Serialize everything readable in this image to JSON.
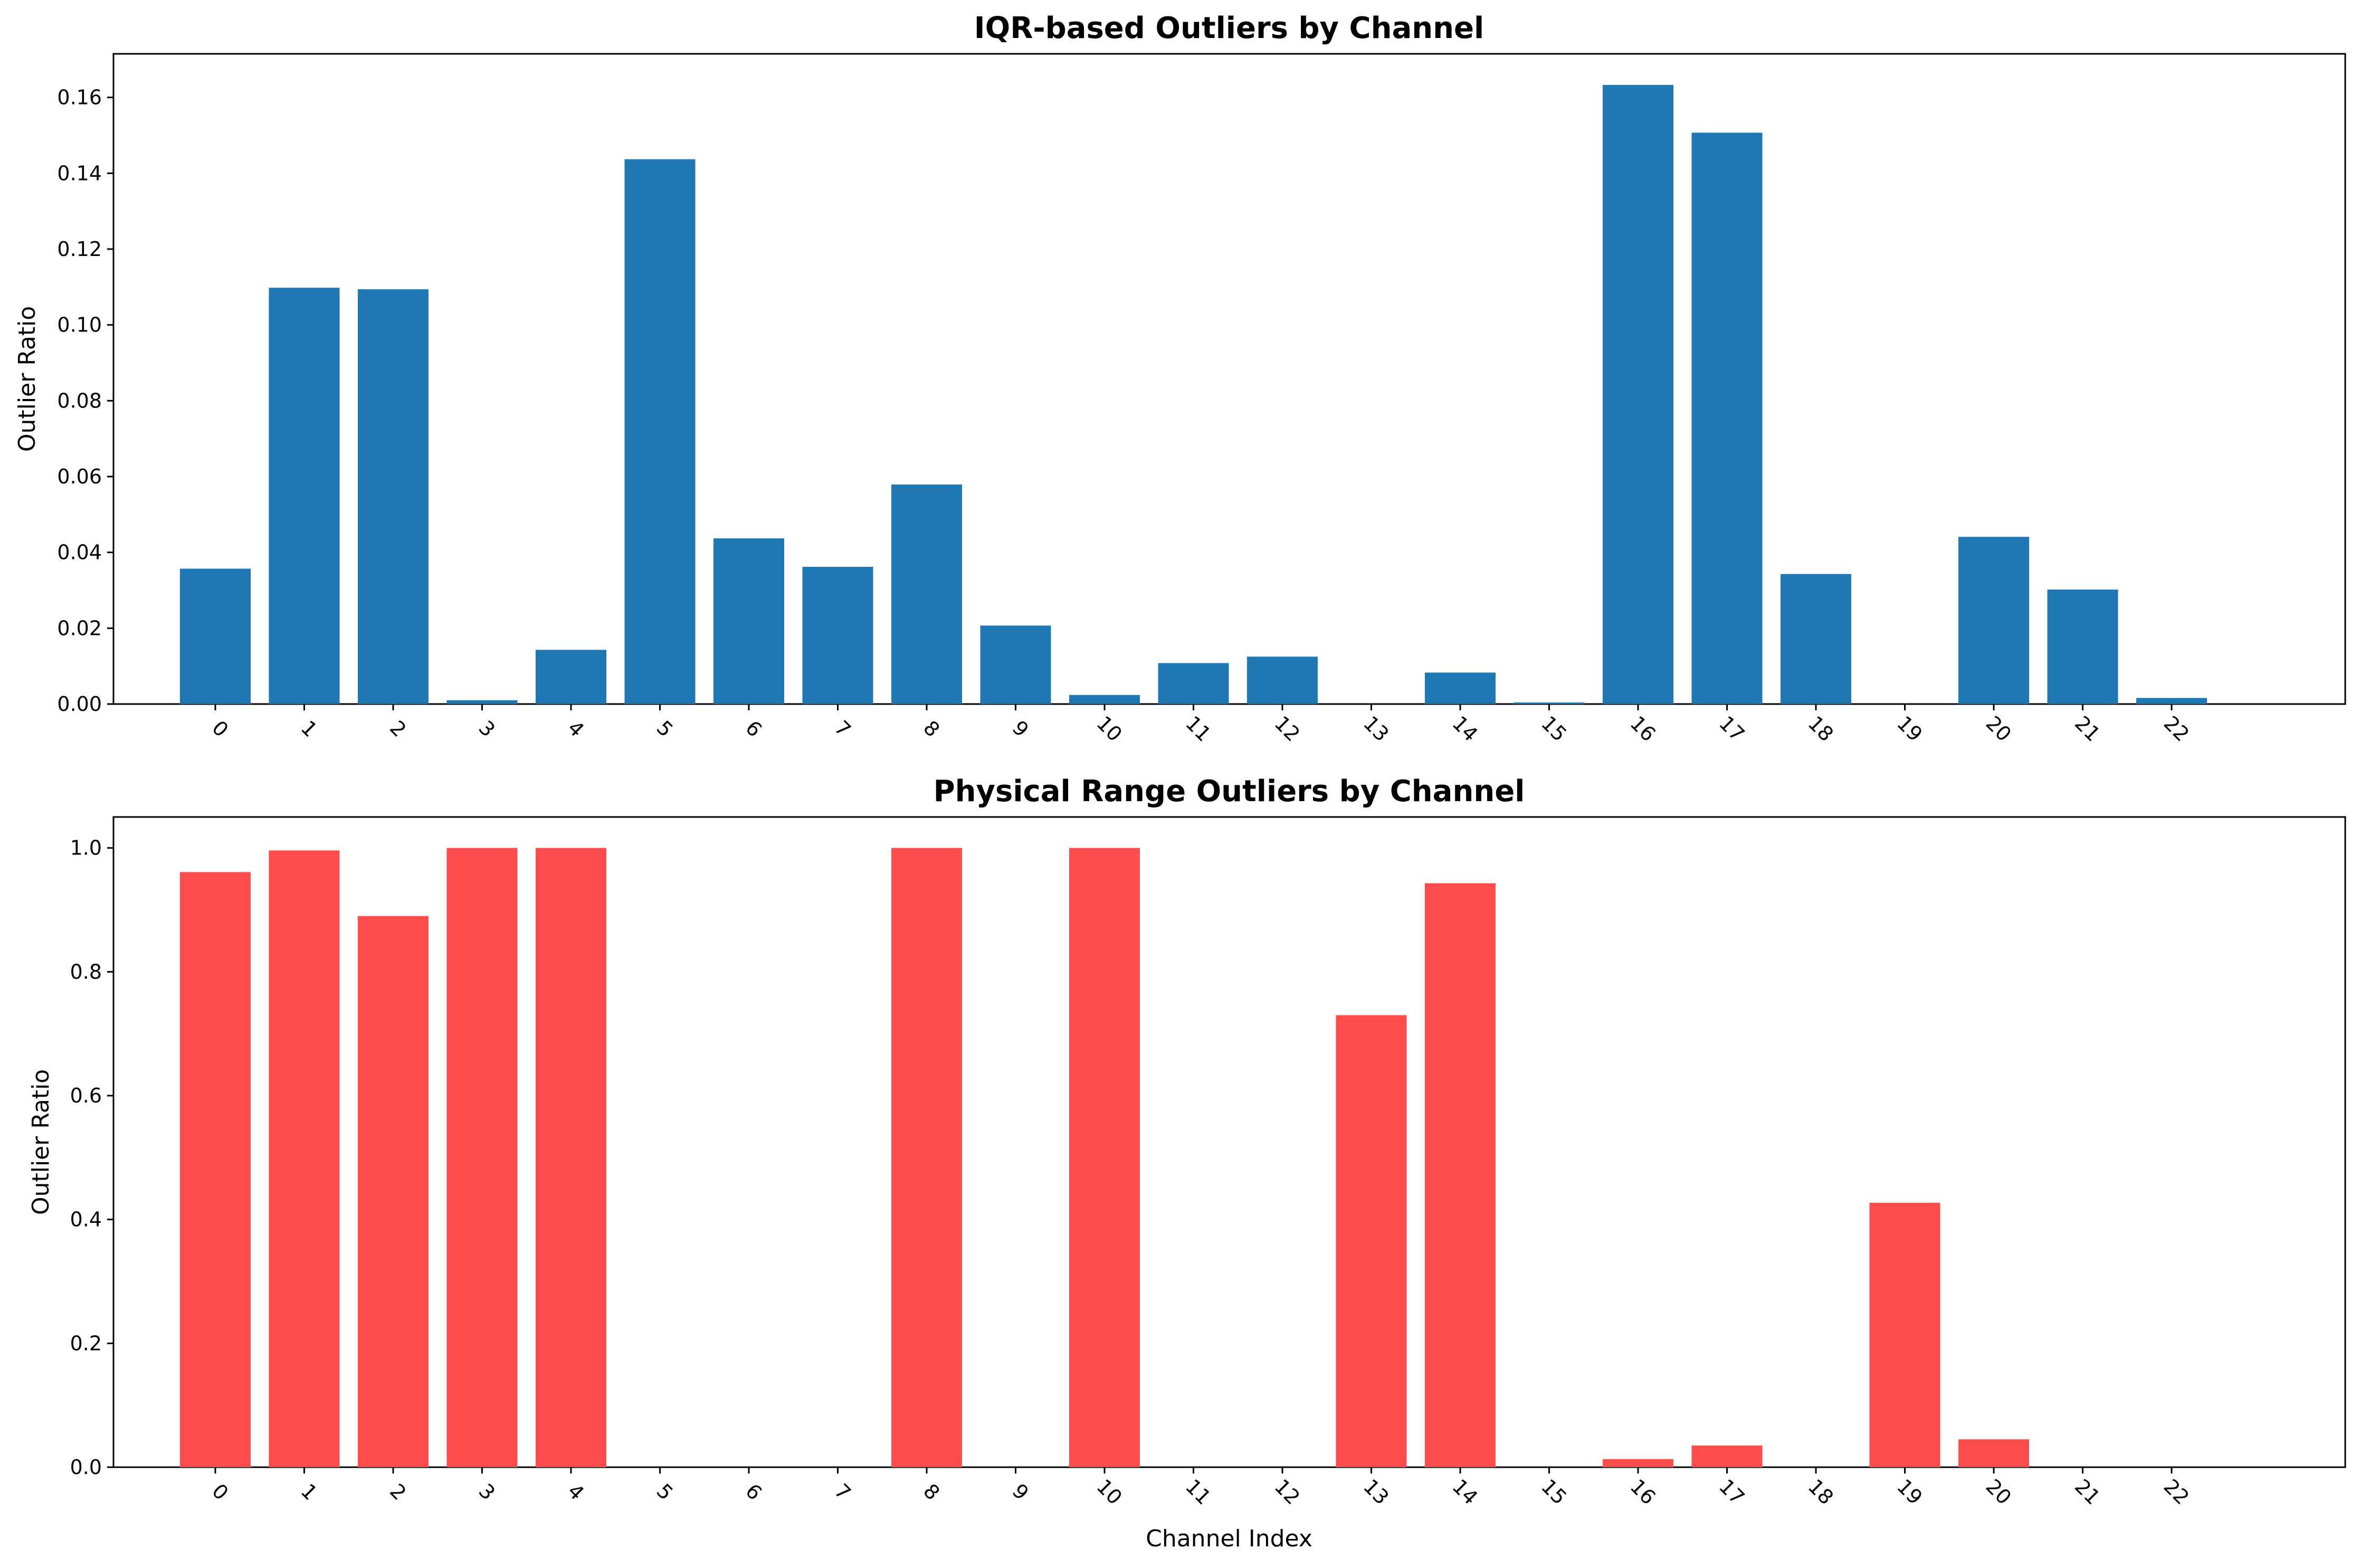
{
  "chart_data": [
    {
      "type": "bar",
      "title": "IQR-based Outliers by Channel",
      "xlabel": "",
      "ylabel": "Outlier Ratio",
      "categories": [
        "0",
        "1",
        "2",
        "3",
        "4",
        "5",
        "6",
        "7",
        "8",
        "9",
        "10",
        "11",
        "12",
        "13",
        "14",
        "15",
        "16",
        "17",
        "18",
        "19",
        "20",
        "21",
        "22"
      ],
      "values": [
        0.0357,
        0.1098,
        0.1094,
        0.001,
        0.0143,
        0.1437,
        0.0437,
        0.0362,
        0.0579,
        0.0207,
        0.0024,
        0.0108,
        0.0125,
        0.0,
        0.0083,
        0.0004,
        0.1633,
        0.1507,
        0.0343,
        0.0,
        0.0441,
        0.0302,
        0.0016
      ],
      "yticks": [
        "0.00",
        "0.02",
        "0.04",
        "0.06",
        "0.08",
        "0.10",
        "0.12",
        "0.14",
        "0.16"
      ],
      "ylim": [
        0,
        0.1715
      ],
      "color": "#1f77b4",
      "grid": false
    },
    {
      "type": "bar",
      "title": "Physical Range Outliers by Channel",
      "xlabel": "Channel Index",
      "ylabel": "Outlier Ratio",
      "categories": [
        "0",
        "1",
        "2",
        "3",
        "4",
        "5",
        "6",
        "7",
        "8",
        "9",
        "10",
        "11",
        "12",
        "13",
        "14",
        "15",
        "16",
        "17",
        "18",
        "19",
        "20",
        "21",
        "22"
      ],
      "values": [
        0.961,
        0.996,
        0.89,
        1.0,
        1.0,
        0.0,
        0.0,
        0.0,
        1.0,
        0.0,
        1.0,
        0.0,
        0.0,
        0.73,
        0.943,
        0.0,
        0.013,
        0.035,
        0.0,
        0.427,
        0.045,
        0.0,
        0.0
      ],
      "yticks": [
        "0.0",
        "0.2",
        "0.4",
        "0.6",
        "0.8",
        "1.0"
      ],
      "ylim": [
        0,
        1.05
      ],
      "color": "#ff4c4c",
      "grid": false
    }
  ]
}
